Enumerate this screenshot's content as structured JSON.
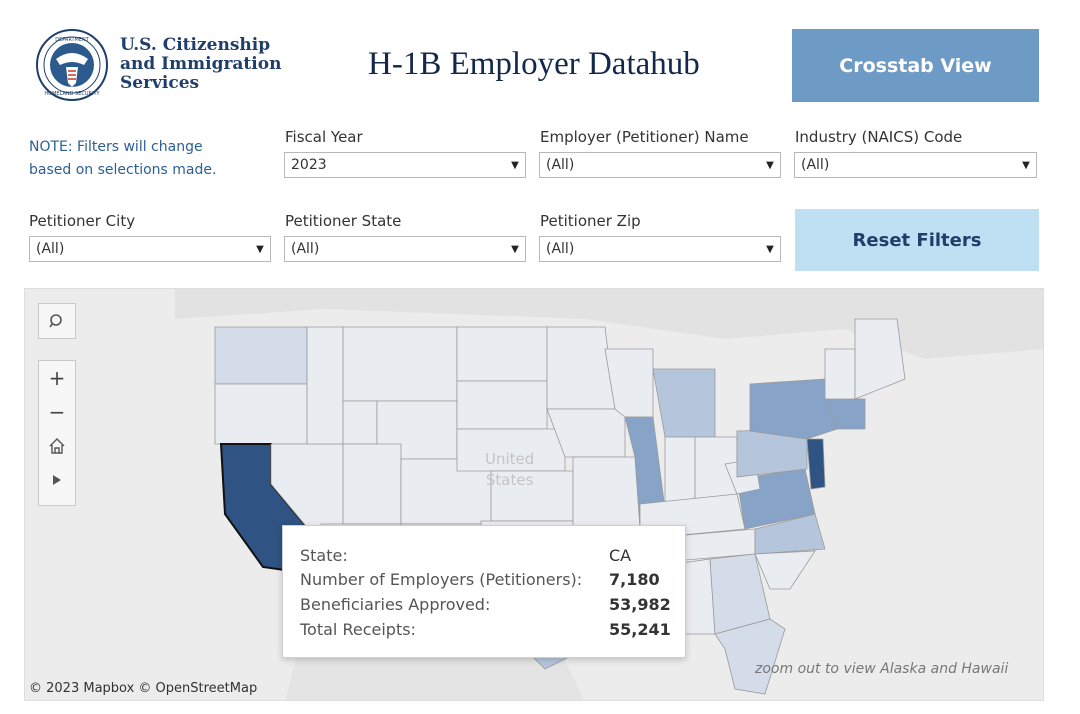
{
  "header": {
    "agency_lines": [
      "U.S. Citizenship",
      "and Immigration",
      "Services"
    ],
    "seal_icon": "dhs-seal-icon",
    "title": "H-1B Employer Datahub",
    "crosstab_label": "Crosstab View",
    "reset_label": "Reset Filters"
  },
  "note": {
    "line1": "NOTE: Filters will change",
    "line2": "based on selections made."
  },
  "filters": {
    "fiscal_year": {
      "label": "Fiscal Year",
      "value": "2023"
    },
    "employer_name": {
      "label": "Employer (Petitioner) Name",
      "value": "(All)"
    },
    "naics": {
      "label": "Industry (NAICS) Code",
      "value": "(All)"
    },
    "city": {
      "label": "Petitioner City",
      "value": "(All)"
    },
    "state": {
      "label": "Petitioner State",
      "value": "(All)"
    },
    "zip": {
      "label": "Petitioner Zip",
      "value": "(All)"
    }
  },
  "map": {
    "country_label_line1": "United",
    "country_label_line2": "States",
    "attribution": "© 2023 Mapbox  © OpenStreetMap",
    "zoom_note": "zoom out to view Alaska and Hawaii",
    "tools": [
      "search-icon",
      "zoom-in-icon",
      "zoom-out-icon",
      "home-icon",
      "play-icon"
    ],
    "colors": {
      "highlight": "#2f5382",
      "dark": "#87a4c8",
      "medium": "#b5c6dc",
      "light": "#d3dce8",
      "pale": "#e9ecf1"
    }
  },
  "tooltip": {
    "state_label": "State:",
    "state_value": "CA",
    "employers_label": "Number of Employers (Petitioners):",
    "employers_value": "7,180",
    "approved_label": "Beneficiaries Approved:",
    "approved_value": "53,982",
    "receipts_label": "Total Receipts:",
    "receipts_value": "55,241"
  }
}
